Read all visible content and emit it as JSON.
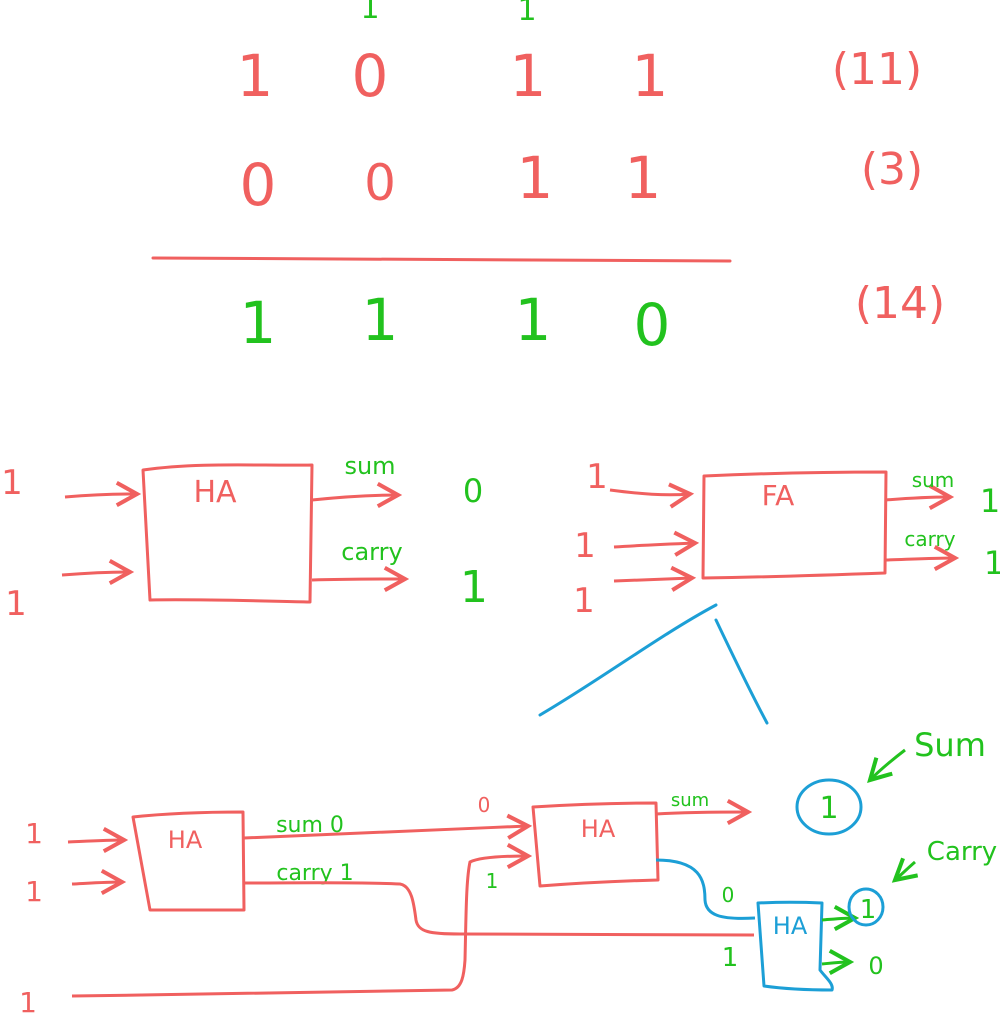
{
  "colors": {
    "red": "#f0605f",
    "green": "#22c21e",
    "blue": "#1c9fd6"
  },
  "addition": {
    "carry_row": [
      "1",
      "1"
    ],
    "row1": [
      "1",
      "0",
      "1",
      "1"
    ],
    "row1_label": "(11)",
    "row2": [
      "0",
      "0",
      "1",
      "1"
    ],
    "row2_label": "(3)",
    "result": [
      "1",
      "1",
      "1",
      "0"
    ],
    "result_label": "(14)"
  },
  "half_adder": {
    "title": "HA",
    "inputs": [
      "1",
      "1"
    ],
    "sum_label": "sum",
    "carry_label": "carry",
    "sum_value": "0",
    "carry_value": "1"
  },
  "full_adder": {
    "title": "FA",
    "inputs": [
      "1",
      "1",
      "1"
    ],
    "sum_label": "sum",
    "carry_label": "carry",
    "sum_value": "1",
    "carry_value": "1"
  },
  "expansion": {
    "ha1_title": "HA",
    "ha2_title": "HA",
    "ha3_title": "HA",
    "inputs": [
      "1",
      "1",
      "1"
    ],
    "ha1_sum_label": "sum 0",
    "ha1_carry_label": "carry 1",
    "ha2_in_top": "0",
    "ha2_in_bottom": "1",
    "ha2_sum_label": "sum",
    "sum_result": "1",
    "sum_annotation": "Sum",
    "ha3_in_top": "0",
    "ha3_in_bottom": "1",
    "carry_result": "1",
    "ha3_out_bottom": "0",
    "carry_annotation": "Carry"
  }
}
